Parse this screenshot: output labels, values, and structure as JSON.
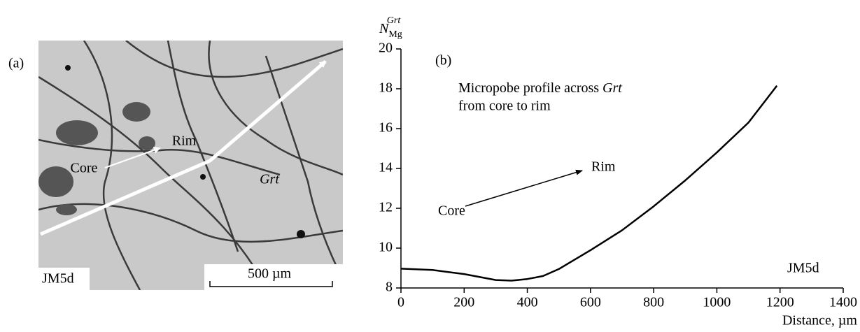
{
  "panel_a": {
    "label": "(a)",
    "core": "Core",
    "rim": "Rim",
    "mineral": "Grt",
    "sample": "JM5d",
    "scale_bar": "500 µm"
  },
  "chart_data": {
    "type": "line",
    "panel_label": "(b)",
    "ylabel": {
      "base": "N",
      "sub": "Mg",
      "sup": "Grt"
    },
    "xlabel": "Distance, µm",
    "note": {
      "text": "Micropobe profile across",
      "italic": "Grt",
      "line2": "from core to rim"
    },
    "arrow_start": "Core",
    "arrow_end": "Rim",
    "sample": "JM5d",
    "x": [
      0,
      100,
      200,
      300,
      350,
      400,
      450,
      500,
      600,
      700,
      800,
      900,
      1000,
      1100,
      1190
    ],
    "values": [
      8.97,
      8.9,
      8.7,
      8.4,
      8.37,
      8.45,
      8.6,
      8.95,
      9.9,
      10.9,
      12.1,
      13.4,
      14.8,
      16.3,
      18.15
    ],
    "color": "#000000",
    "xlim": [
      0,
      1400
    ],
    "xticks": [
      0,
      200,
      400,
      600,
      800,
      1000,
      1200,
      1400
    ],
    "ylim": [
      8,
      20
    ],
    "yticks": [
      8,
      10,
      12,
      14,
      16,
      18,
      20
    ]
  }
}
